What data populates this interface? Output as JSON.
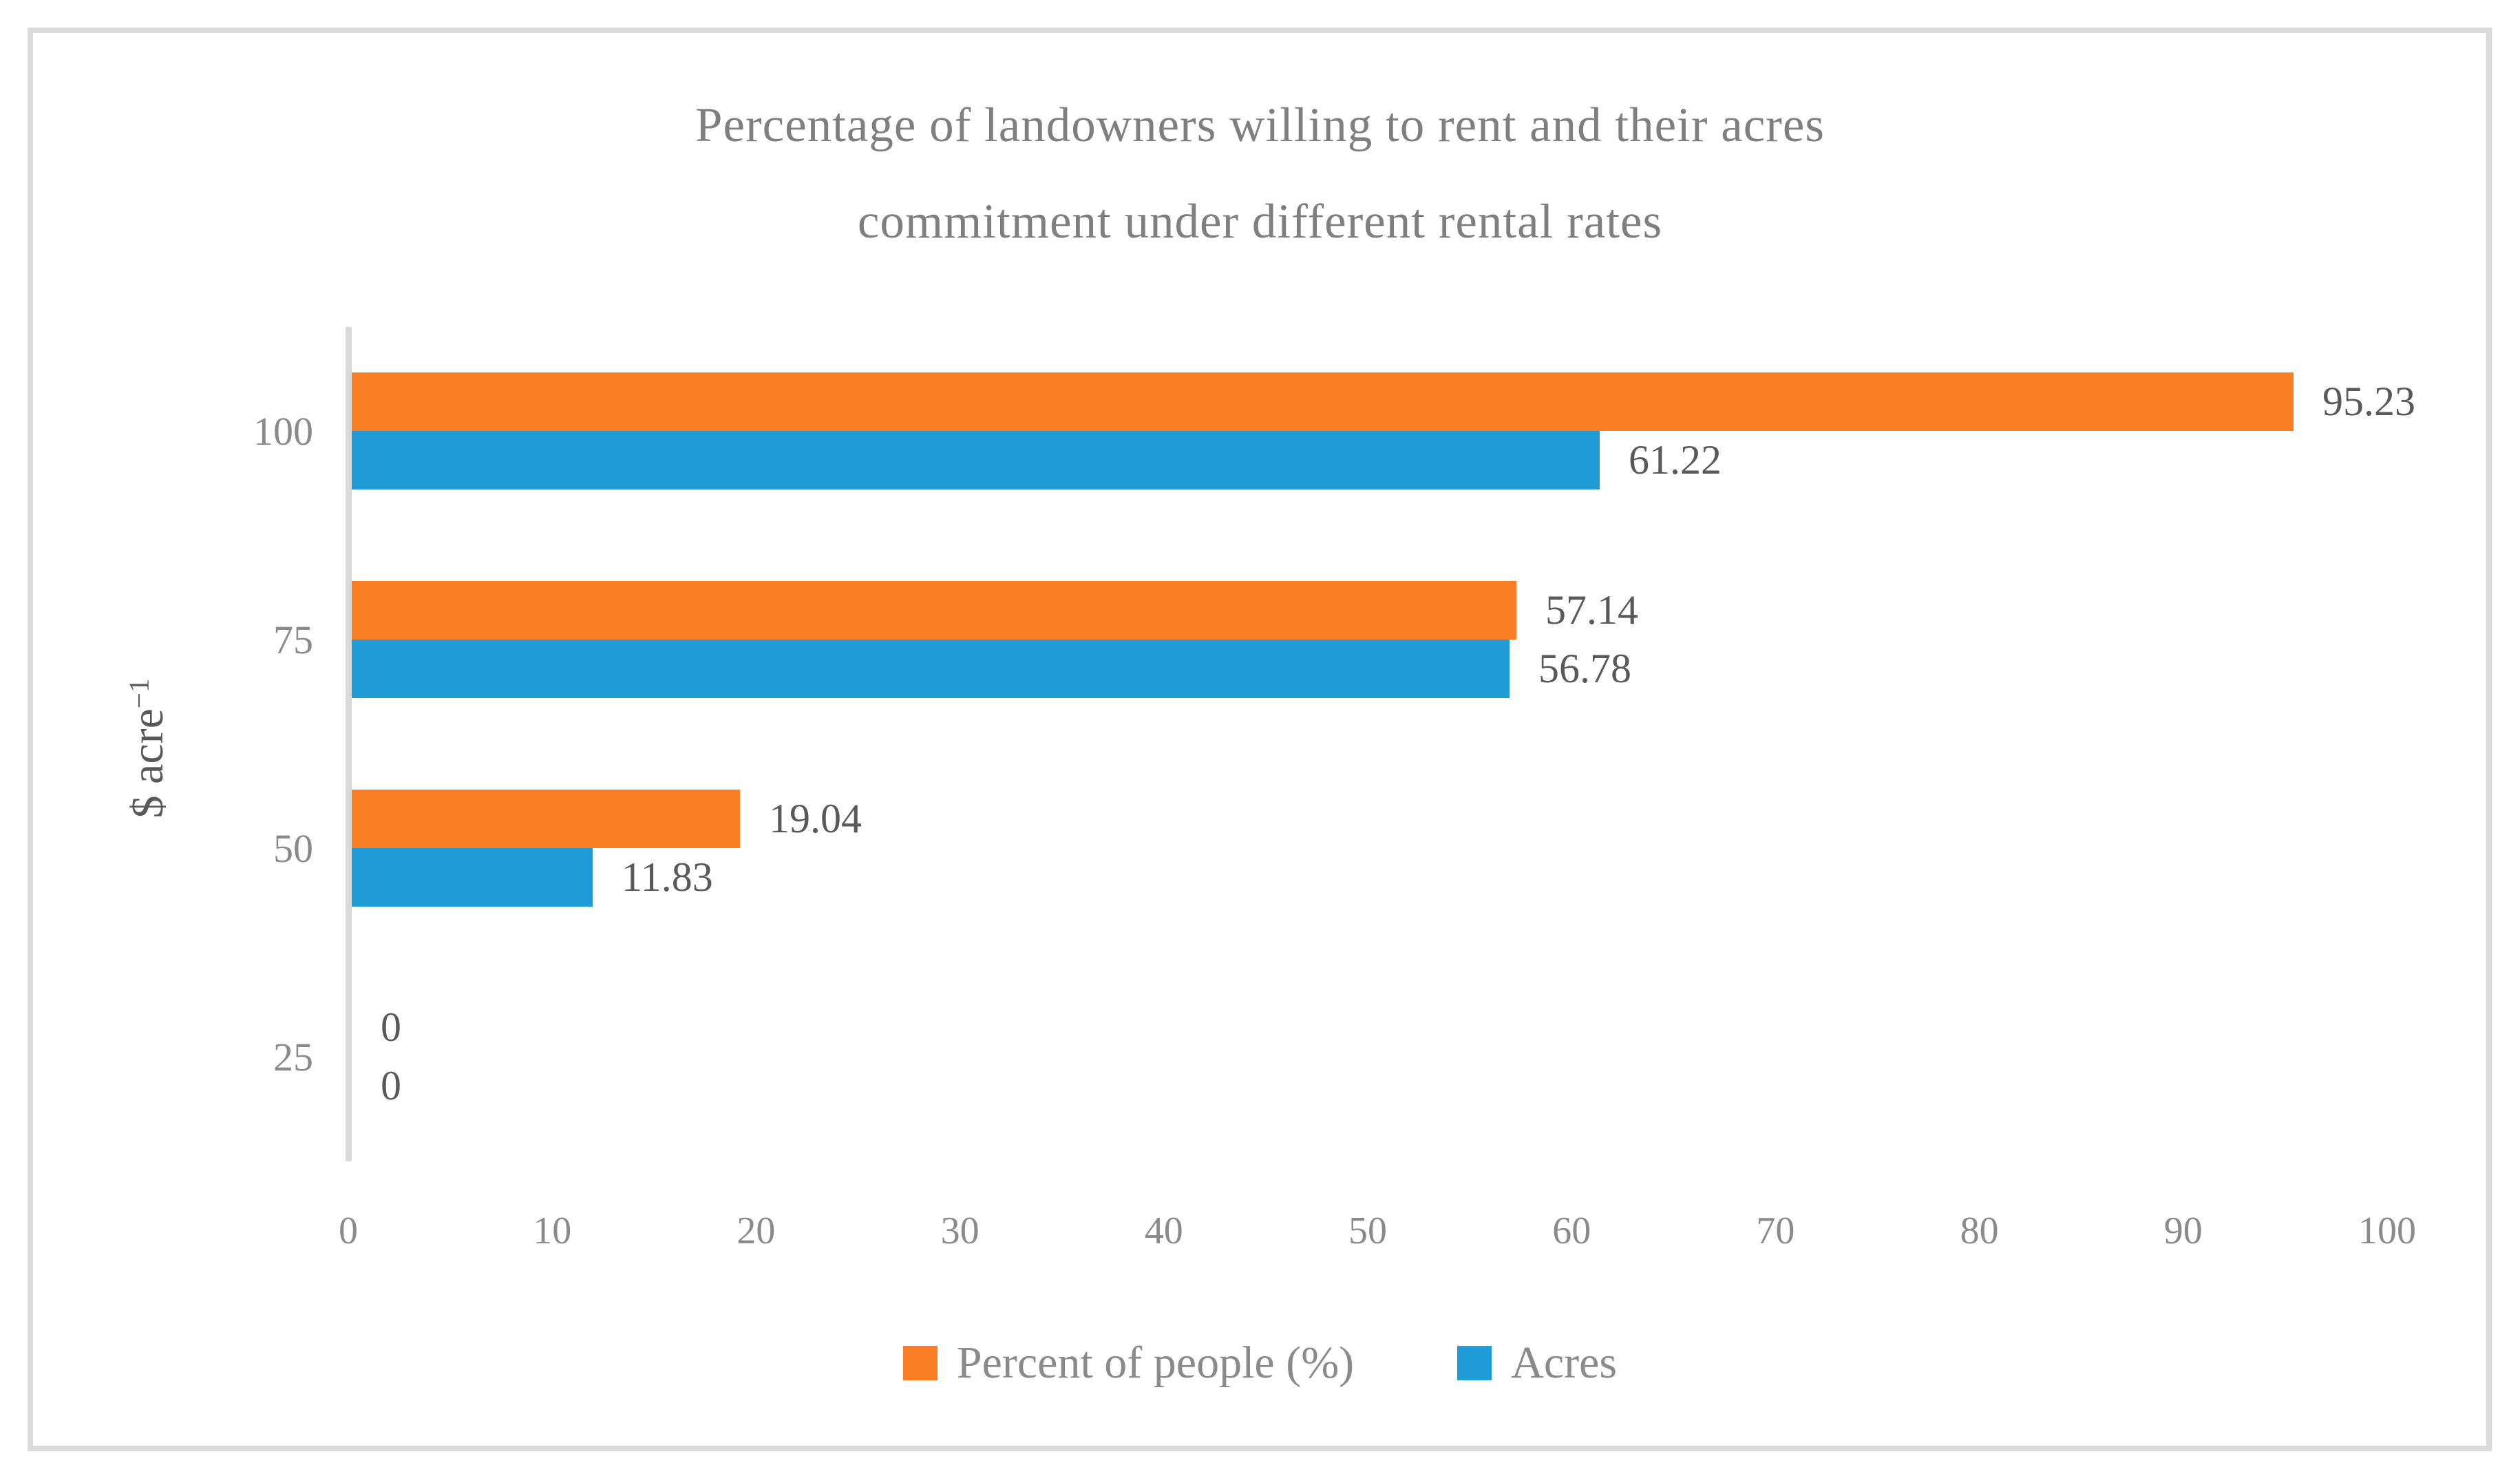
{
  "chart_data": {
    "type": "bar",
    "orientation": "horizontal",
    "title": "Percentage of landowners willing to rent and their acres commitment under different rental rates",
    "title_lines": [
      "Percentage of landowners willing to rent and their acres",
      "commitment under different rental rates"
    ],
    "y_axis": {
      "label_base": "$ acre",
      "label_superscript": "−1"
    },
    "categories": [
      "100",
      "75",
      "50",
      "25"
    ],
    "series": [
      {
        "name": "Percent of people (%)",
        "color": "#FB7D26",
        "values": [
          95.23,
          57.14,
          19.04,
          0
        ],
        "labels": [
          "95.23",
          "57.14",
          "19.04",
          "0"
        ]
      },
      {
        "name": "Acres",
        "color": "#1F9CD8",
        "values": [
          61.22,
          56.78,
          11.83,
          0
        ],
        "labels": [
          "61.22",
          "56.78",
          "11.83",
          "0"
        ]
      }
    ],
    "x_ticks": [
      "0",
      "10",
      "20",
      "30",
      "40",
      "50",
      "60",
      "70",
      "80",
      "90",
      "100"
    ],
    "x_range": [
      0,
      100
    ],
    "grid": false,
    "legend_position": "bottom"
  },
  "colors": {
    "frame_border": "#DBDBDB",
    "axis_line": "#D9D9D9",
    "title_text": "#7F7F7F",
    "category_text": "#8A8A8A",
    "tick_text": "#8A8A8A",
    "data_label_text": "#595959",
    "y_axis_title_text": "#595959",
    "legend_text": "#8A8A8A"
  }
}
